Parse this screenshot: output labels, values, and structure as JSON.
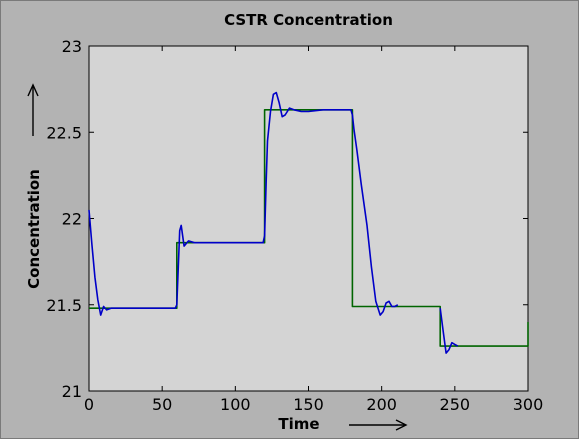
{
  "colors": {
    "figure_background": "#b3b3b3",
    "plot_background": "#d4d4d4",
    "setpoint_line": "#006400",
    "response_line": "#0000c8",
    "axes": "#000000"
  },
  "chart_data": {
    "type": "line",
    "title": "CSTR Concentration",
    "xlabel": "Time",
    "ylabel": "Concentration",
    "xlim": [
      0,
      300
    ],
    "ylim": [
      21,
      23
    ],
    "xticks": [
      0,
      50,
      100,
      150,
      200,
      250,
      300
    ],
    "yticks": [
      21,
      21.5,
      22,
      22.5,
      23
    ],
    "xtick_labels": [
      "0",
      "50",
      "100",
      "150",
      "200",
      "250",
      "300"
    ],
    "ytick_labels": [
      "21",
      "21.5",
      "22",
      "22.5",
      "23"
    ],
    "grid": false,
    "annotations": [
      "x-axis arrow pointing right",
      "y-axis arrow pointing up"
    ],
    "series": [
      {
        "color": "#006400",
        "x": [
          0,
          60,
          60,
          120,
          120,
          180,
          180,
          240,
          240,
          300,
          300
        ],
        "y": [
          21.48,
          21.48,
          21.86,
          21.86,
          22.63,
          22.63,
          21.49,
          21.49,
          21.26,
          21.26,
          21.4
        ]
      },
      {
        "color": "#0000c8",
        "x": [
          0,
          2,
          4,
          6,
          8,
          10,
          12,
          15,
          20,
          30,
          40,
          50,
          59,
          60,
          61,
          62,
          63,
          65,
          68,
          72,
          80,
          100,
          119,
          120,
          121,
          122,
          124,
          126,
          128,
          130,
          132,
          134,
          137,
          140,
          145,
          150,
          160,
          170,
          179,
          180,
          181,
          183,
          186,
          190,
          193,
          196,
          199,
          201,
          203,
          205,
          207,
          209,
          211
        ],
        "y": [
          22.05,
          21.85,
          21.66,
          21.53,
          21.44,
          21.49,
          21.47,
          21.48,
          21.48,
          21.48,
          21.48,
          21.48,
          21.48,
          21.5,
          21.72,
          21.93,
          21.96,
          21.84,
          21.87,
          21.86,
          21.86,
          21.86,
          21.86,
          21.9,
          22.2,
          22.45,
          22.62,
          22.72,
          22.73,
          22.67,
          22.59,
          22.6,
          22.64,
          22.63,
          22.62,
          22.62,
          22.63,
          22.63,
          22.63,
          22.6,
          22.52,
          22.4,
          22.2,
          21.96,
          21.72,
          21.52,
          21.44,
          21.46,
          21.51,
          21.52,
          21.49,
          21.49,
          21.5
        ]
      },
      {
        "color": "#0000c8",
        "x": [
          240,
          242,
          244,
          246,
          248,
          250,
          252
        ],
        "y": [
          21.48,
          21.35,
          21.22,
          21.24,
          21.28,
          21.27,
          21.26
        ]
      }
    ]
  }
}
